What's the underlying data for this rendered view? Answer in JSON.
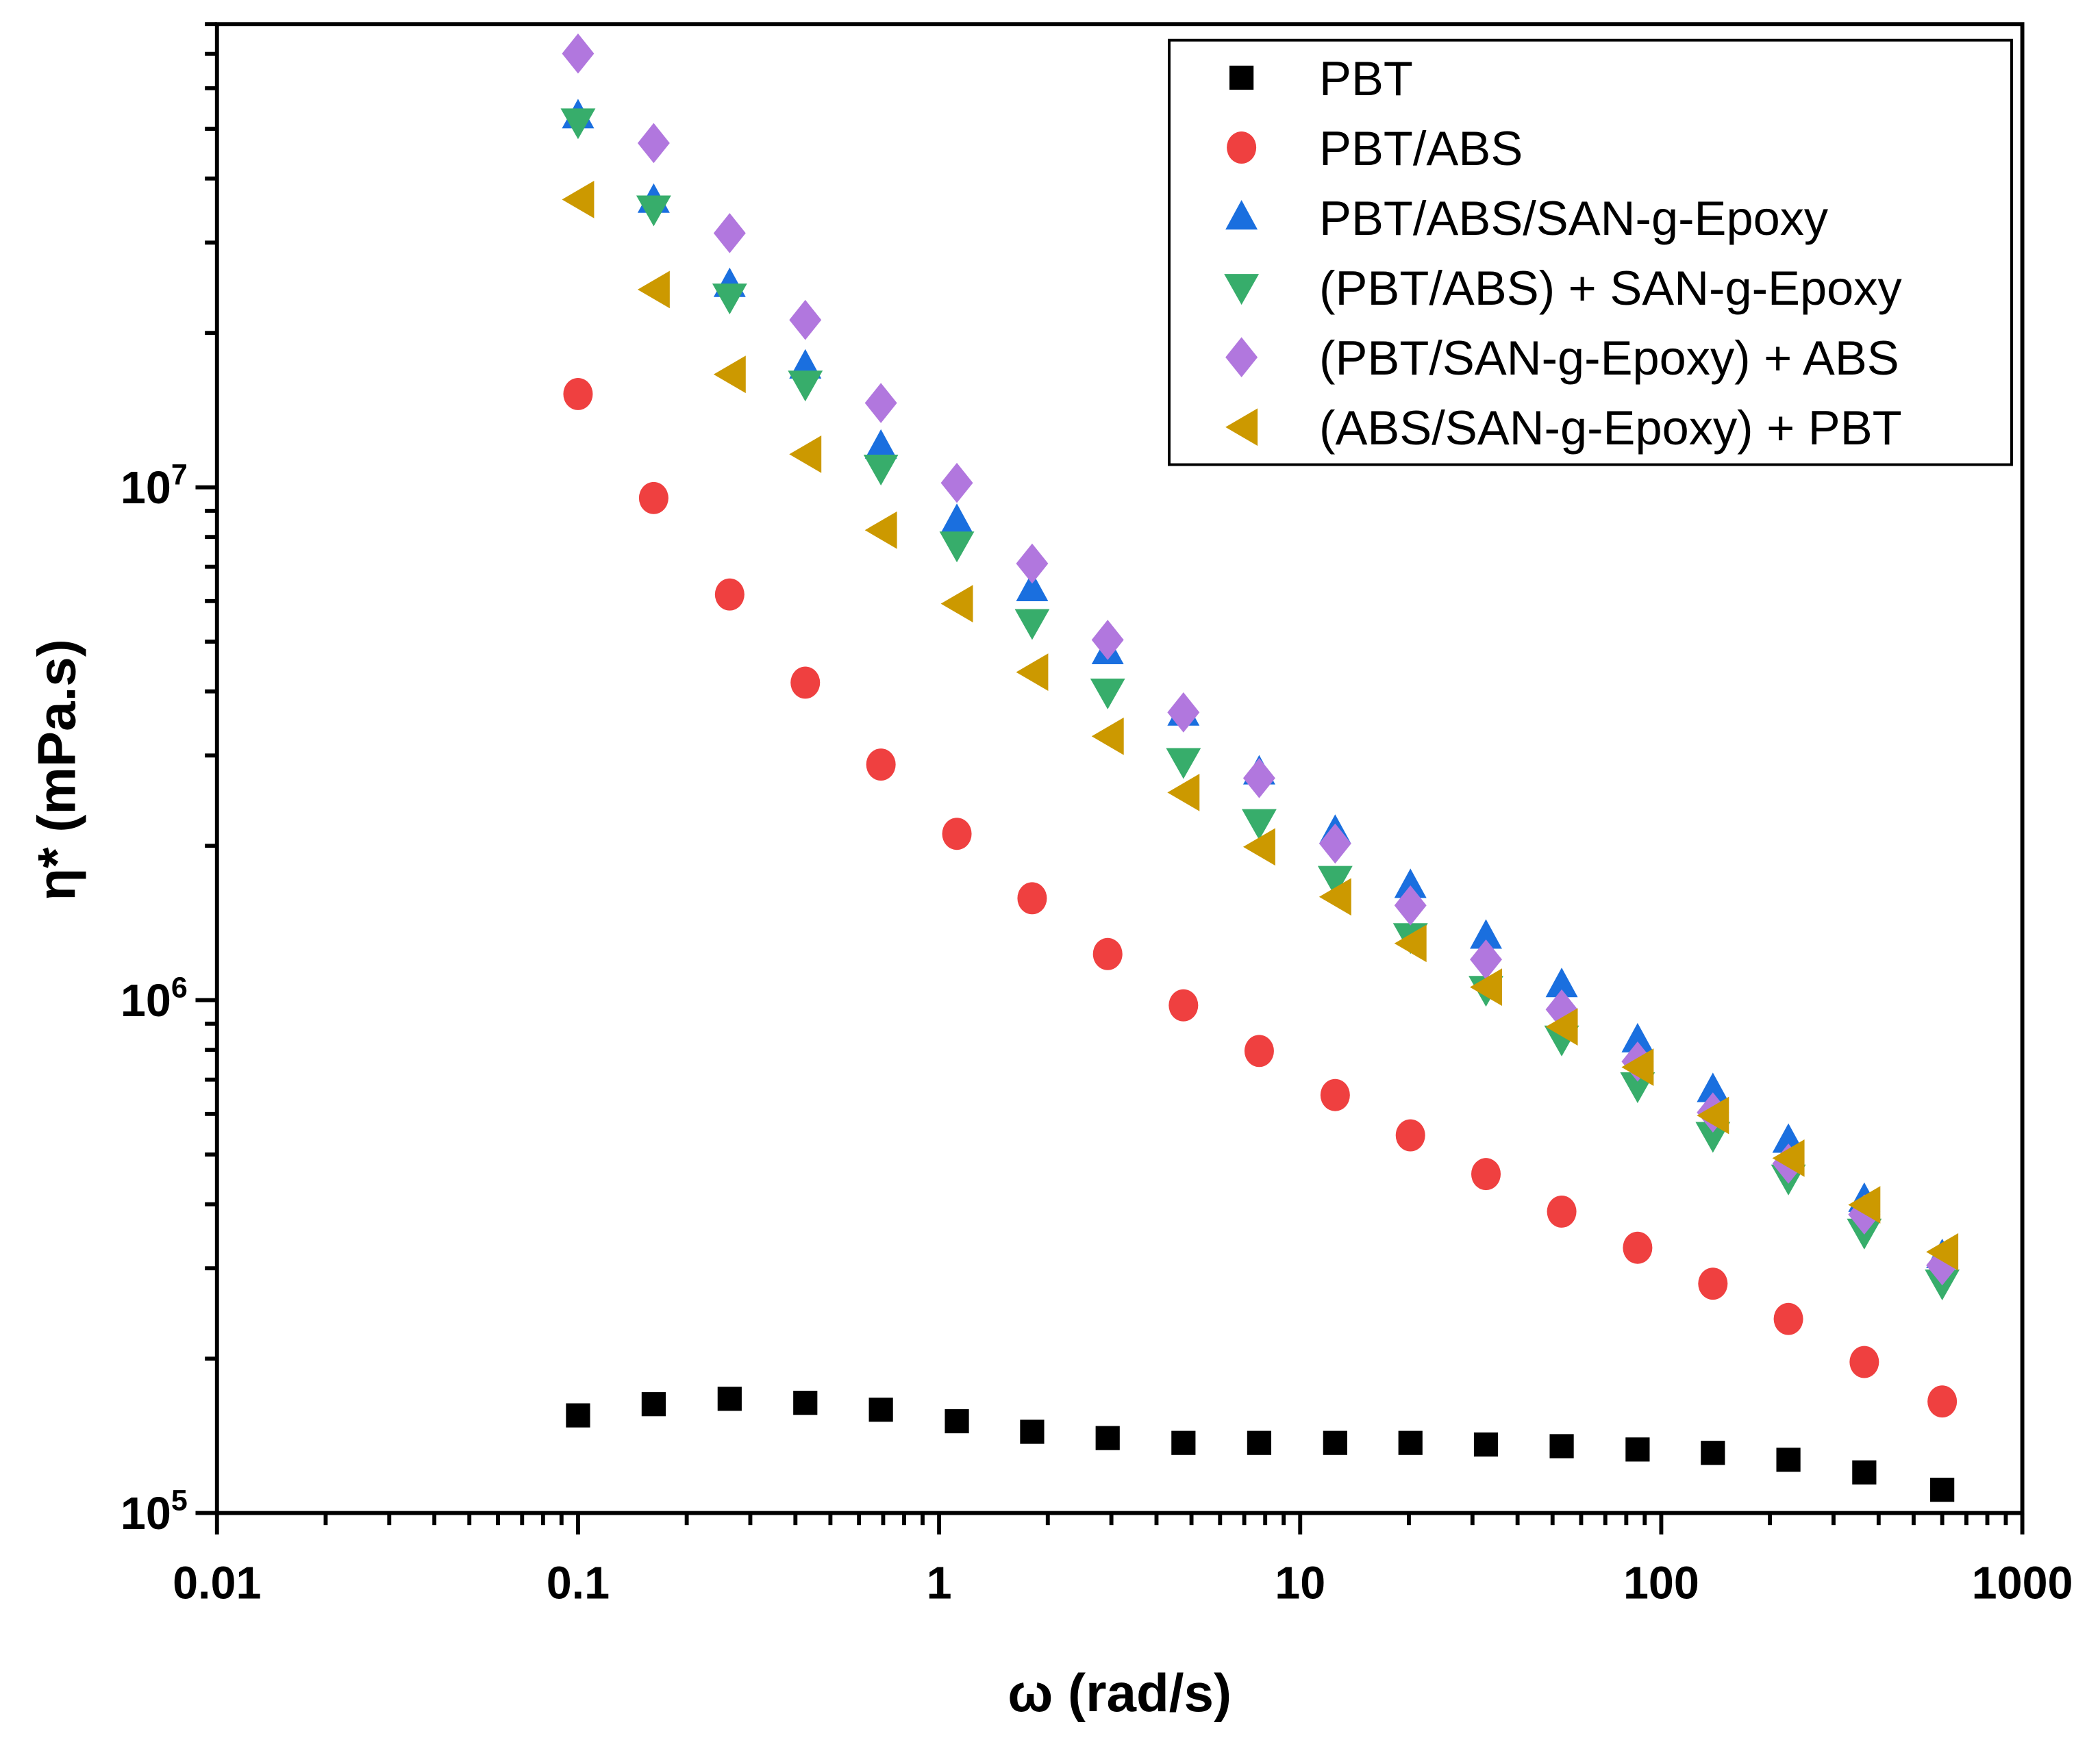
{
  "chart_data": {
    "type": "scatter",
    "title": "",
    "xlabel": "ω (rad/s)",
    "ylabel": "η* (mPa.s)",
    "xscale": "log",
    "yscale": "log",
    "xlim": [
      0.01,
      1000
    ],
    "ylim": [
      100000,
      80000000
    ],
    "x_tick_labels": [
      "0.01",
      "0.1",
      "1",
      "10",
      "100",
      "1000"
    ],
    "y_tick_labels": [
      {
        "base": "10",
        "exp": "5"
      },
      {
        "base": "10",
        "exp": "6"
      },
      {
        "base": "10",
        "exp": "7"
      }
    ],
    "legend_position": "top-right",
    "x": [
      0.1,
      0.162,
      0.263,
      0.426,
      0.69,
      1.12,
      1.81,
      2.93,
      4.75,
      7.7,
      12.5,
      20.2,
      32.7,
      53,
      86,
      139,
      225,
      365,
      600
    ],
    "series": [
      {
        "name": "PBT",
        "marker": "square",
        "color": "#000000",
        "values": [
          155000,
          163000,
          167000,
          164000,
          159000,
          151000,
          144000,
          140000,
          137000,
          137000,
          137000,
          137000,
          136000,
          135000,
          133000,
          131000,
          127000,
          120000,
          111000
        ]
      },
      {
        "name": "PBT/ABS",
        "marker": "circle",
        "color": "#EF4040",
        "values": [
          15200000,
          9530000,
          6180000,
          4160000,
          2880000,
          2110000,
          1580000,
          1230000,
          977000,
          796000,
          653000,
          545000,
          458000,
          387000,
          329000,
          280000,
          239000,
          197000,
          165000
        ]
      },
      {
        "name": "PBT/ABS/SAN-g-Epoxy",
        "marker": "triangle-up",
        "color": "#1A6FDF",
        "values": [
          52900000,
          36200000,
          24800000,
          17200000,
          12000000,
          8600000,
          6330000,
          4770000,
          3620000,
          2780000,
          2130000,
          1670000,
          1330000,
          1070000,
          835000,
          668000,
          532000,
          408000,
          317000
        ]
      },
      {
        "name": "(PBT/ABS) + SAN-g-Epoxy",
        "marker": "triangle-down",
        "color": "#37AD6B",
        "values": [
          51600000,
          34900000,
          23500000,
          15900000,
          10900000,
          7720000,
          5450000,
          3990000,
          2920000,
          2220000,
          1720000,
          1330000,
          1050000,
          840000,
          681000,
          545000,
          450000,
          353000,
          281000
        ]
      },
      {
        "name": "(PBT/SAN-g-Epoxy) + ABS",
        "marker": "diamond",
        "color": "#B177DE",
        "values": [
          70100000,
          46900000,
          31300000,
          21200000,
          14600000,
          10200000,
          7100000,
          5040000,
          3640000,
          2710000,
          2020000,
          1530000,
          1200000,
          959000,
          759000,
          604000,
          480000,
          382000,
          304000
        ]
      },
      {
        "name": "(ABS/SAN-g-Epoxy) + PBT",
        "marker": "triangle-left",
        "color": "#CC9900",
        "values": [
          36400000,
          24300000,
          16600000,
          11600000,
          8250000,
          5930000,
          4360000,
          3270000,
          2540000,
          1990000,
          1590000,
          1290000,
          1060000,
          887000,
          740000,
          596000,
          492000,
          399000,
          323000
        ]
      }
    ]
  }
}
